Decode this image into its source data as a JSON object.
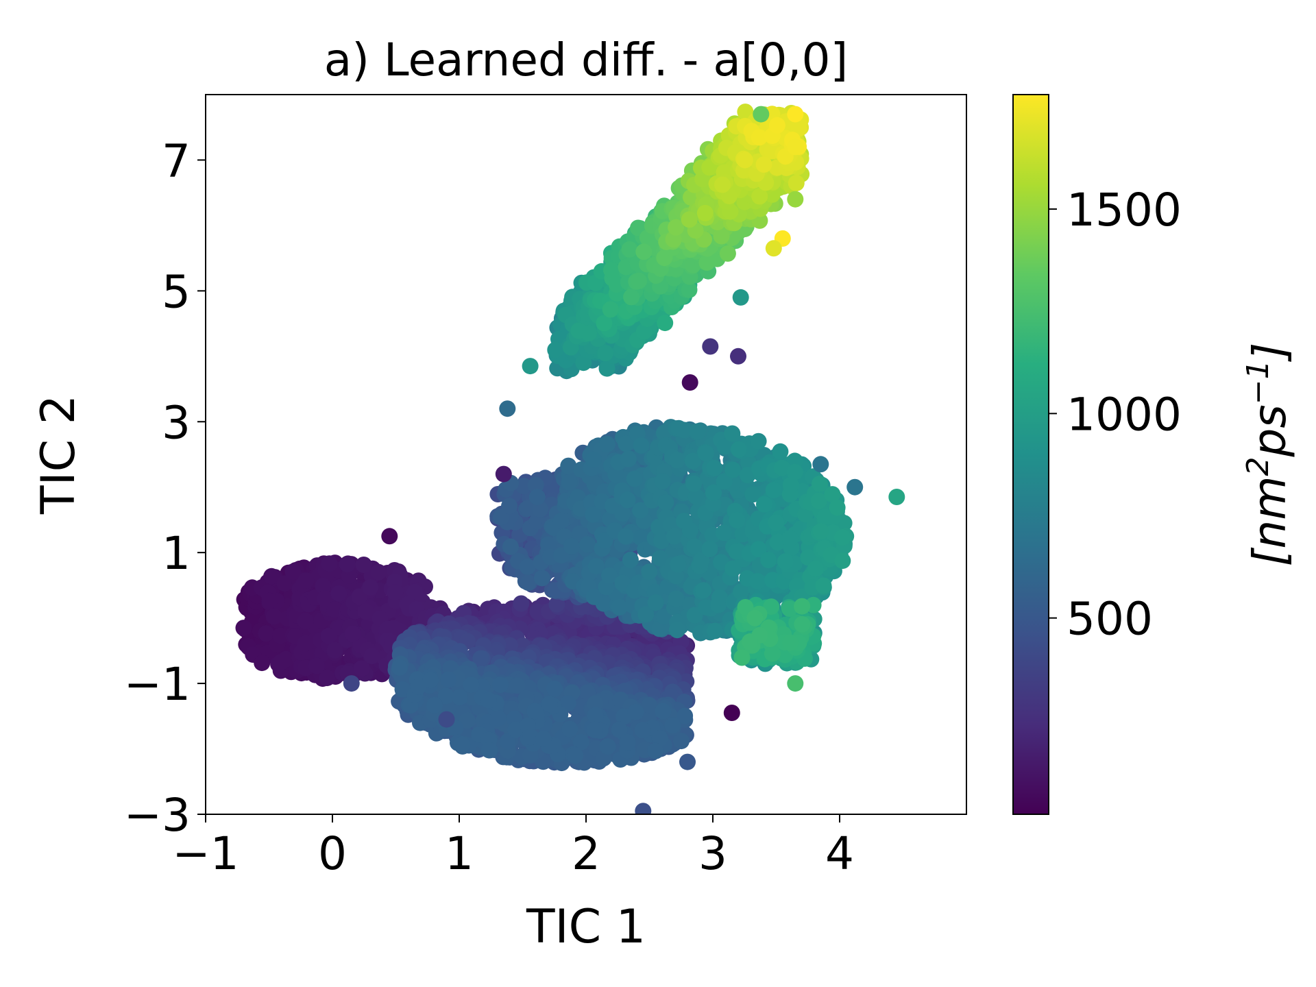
{
  "chart_data": {
    "type": "scatter",
    "title": "a) Learned diff. - a[0,0]",
    "xlabel": "TIC 1",
    "ylabel": "TIC 2",
    "xlim": [
      -1,
      5
    ],
    "ylim": [
      -3,
      8
    ],
    "xticks": [
      -1,
      0,
      1,
      2,
      3,
      4
    ],
    "xtick_labels": [
      "−1",
      "0",
      "1",
      "2",
      "3",
      "4"
    ],
    "yticks": [
      -3,
      -1,
      1,
      3,
      5,
      7
    ],
    "ytick_labels": [
      "−3",
      "−1",
      "1",
      "3",
      "5",
      "7"
    ],
    "grid": false,
    "colormap": "viridis",
    "colorbar": {
      "label": "[nm²ps⁻¹]",
      "label_base": "[nm",
      "label_sup1": "2",
      "label_mid": "ps",
      "label_sup2": "−1",
      "label_end": "]",
      "range": [
        20,
        1780
      ],
      "ticks": [
        500,
        1000,
        1500
      ],
      "tick_labels": [
        "500",
        "1000",
        "1500"
      ]
    },
    "clusters": [
      {
        "region": "left lobe",
        "x_range": [
          -0.7,
          0.9
        ],
        "y_range": [
          -1.1,
          1.0
        ],
        "value_range": [
          30,
          180
        ]
      },
      {
        "region": "central band",
        "x_range": [
          0.5,
          2.6
        ],
        "y_range": [
          -3.0,
          0.8
        ],
        "value_range": [
          150,
          600
        ]
      },
      {
        "region": "right lobe",
        "x_range": [
          1.7,
          4.1
        ],
        "y_range": [
          -0.8,
          3.8
        ],
        "value_range": [
          500,
          1100
        ]
      },
      {
        "region": "upper arm",
        "x_range": [
          1.9,
          3.7
        ],
        "y_range": [
          3.2,
          7.7
        ],
        "value_range": [
          700,
          1780
        ]
      }
    ],
    "points": [
      {
        "x": 4.45,
        "y": 1.85,
        "v": 1050
      },
      {
        "x": 3.65,
        "y": -1.0,
        "v": 1250
      },
      {
        "x": 3.65,
        "y": 6.4,
        "v": 1500
      },
      {
        "x": 3.55,
        "y": 5.8,
        "v": 1780
      },
      {
        "x": 3.48,
        "y": 5.65,
        "v": 1700
      },
      {
        "x": 3.65,
        "y": 7.7,
        "v": 1780
      },
      {
        "x": 3.38,
        "y": 7.7,
        "v": 1350
      },
      {
        "x": 3.65,
        "y": 7.2,
        "v": 1750
      },
      {
        "x": 3.22,
        "y": 4.9,
        "v": 950
      },
      {
        "x": 2.82,
        "y": 3.6,
        "v": 60
      },
      {
        "x": 3.2,
        "y": 4.0,
        "v": 250
      },
      {
        "x": 2.98,
        "y": 4.15,
        "v": 280
      },
      {
        "x": 1.38,
        "y": 3.2,
        "v": 640
      },
      {
        "x": 1.56,
        "y": 3.85,
        "v": 950
      },
      {
        "x": 1.35,
        "y": 2.2,
        "v": 150
      },
      {
        "x": 0.45,
        "y": 1.25,
        "v": 60
      },
      {
        "x": 0.9,
        "y": -1.55,
        "v": 420
      },
      {
        "x": 0.15,
        "y": -1.0,
        "v": 380
      },
      {
        "x": 3.85,
        "y": 2.35,
        "v": 700
      },
      {
        "x": 4.12,
        "y": 2.0,
        "v": 700
      },
      {
        "x": 3.15,
        "y": -1.45,
        "v": 20
      },
      {
        "x": 2.8,
        "y": -2.2,
        "v": 500
      },
      {
        "x": 2.45,
        "y": -2.95,
        "v": 450
      }
    ]
  }
}
